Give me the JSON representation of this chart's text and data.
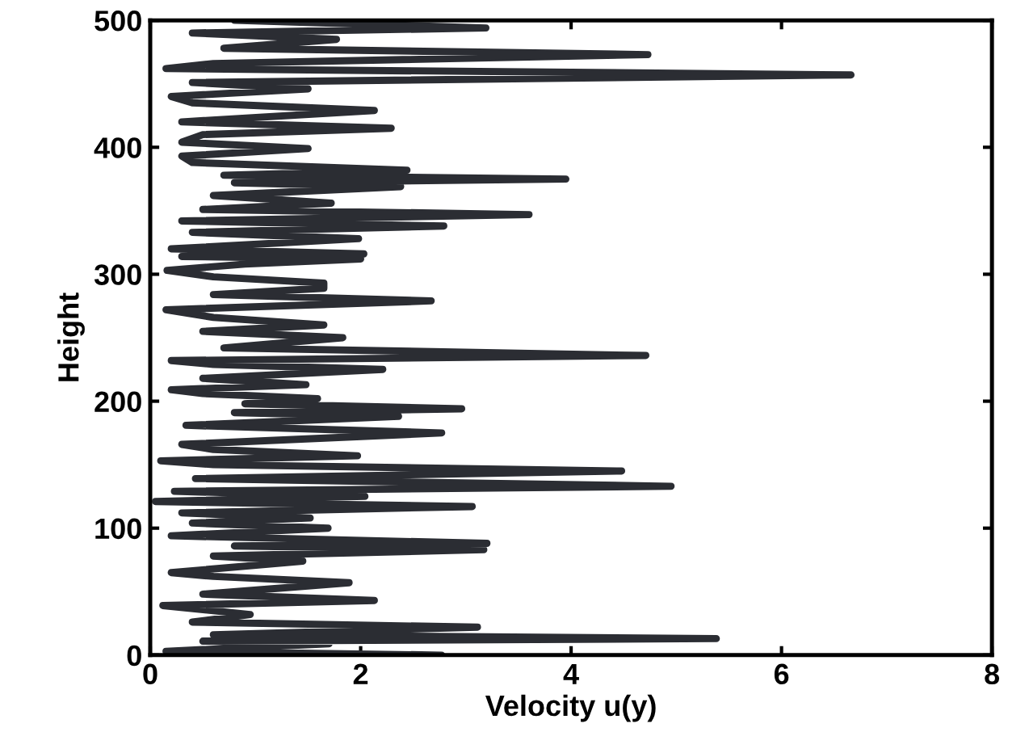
{
  "chart_data": {
    "type": "line",
    "xlabel": "Velocity u(y)",
    "ylabel": "Height",
    "xlim": [
      0,
      8
    ],
    "ylim": [
      0,
      500
    ],
    "xticks": [
      0,
      2,
      4,
      6,
      8
    ],
    "yticks": [
      0,
      100,
      200,
      300,
      400,
      500
    ],
    "grid": false,
    "marker": "none",
    "line_style": "solid",
    "series": [
      {
        "color": "#2b2d33",
        "x": [
          2.77,
          0.15,
          1.7,
          0.5,
          5.38,
          0.6,
          3.11,
          0.4,
          0.95,
          0.12,
          2.13,
          0.5,
          1.89,
          0.6,
          0.2,
          1.45,
          0.6,
          3.17,
          0.8,
          3.2,
          0.2,
          1.69,
          0.4,
          1.52,
          0.3,
          3.06,
          0.05,
          2.04,
          0.23,
          4.95,
          0.43,
          4.48,
          0.6,
          0.1,
          1.97,
          0.6,
          0.3,
          2.77,
          0.34,
          2.36,
          0.8,
          2.96,
          0.9,
          1.59,
          0.5,
          0.2,
          1.48,
          0.5,
          2.21,
          0.6,
          0.2,
          4.71,
          0.7,
          1.83,
          0.5,
          1.65,
          0.6,
          0.15,
          2.67,
          0.6,
          1.65,
          1.65,
          0.6,
          0.16,
          0.9,
          2.0,
          0.3,
          2.03,
          0.2,
          1.98,
          0.4,
          2.79,
          0.3,
          3.6,
          0.5,
          1.72,
          0.6,
          2.38,
          0.8,
          3.95,
          0.7,
          2.44,
          0.4,
          0.3,
          1.5,
          0.3,
          0.5,
          2.29,
          0.3,
          2.13,
          0.4,
          0.2,
          1.5,
          0.4,
          6.66,
          0.15,
          0.6,
          4.73,
          0.7,
          1.77,
          0.4,
          3.19,
          0.8
        ],
        "values": [
          0,
          3,
          9,
          11,
          13,
          16,
          22,
          26,
          32,
          39,
          43,
          48,
          57,
          62,
          65,
          74,
          78,
          83,
          86,
          88,
          94,
          100,
          104,
          108,
          112,
          117,
          121,
          125,
          129,
          133,
          139,
          145,
          150,
          153,
          157,
          162,
          166,
          175,
          181,
          188,
          191,
          194,
          198,
          202,
          206,
          209,
          213,
          218,
          225,
          229,
          232,
          236,
          242,
          250,
          255,
          260,
          266,
          272,
          279,
          284,
          289,
          293,
          298,
          303,
          308,
          312,
          314,
          316,
          320,
          328,
          333,
          338,
          342,
          347,
          351,
          356,
          362,
          369,
          372,
          375,
          378,
          382,
          388,
          393,
          399,
          404,
          410,
          415,
          420,
          429,
          435,
          440,
          446,
          451,
          457,
          462,
          466,
          473,
          478,
          485,
          490,
          494,
          500
        ]
      }
    ]
  }
}
